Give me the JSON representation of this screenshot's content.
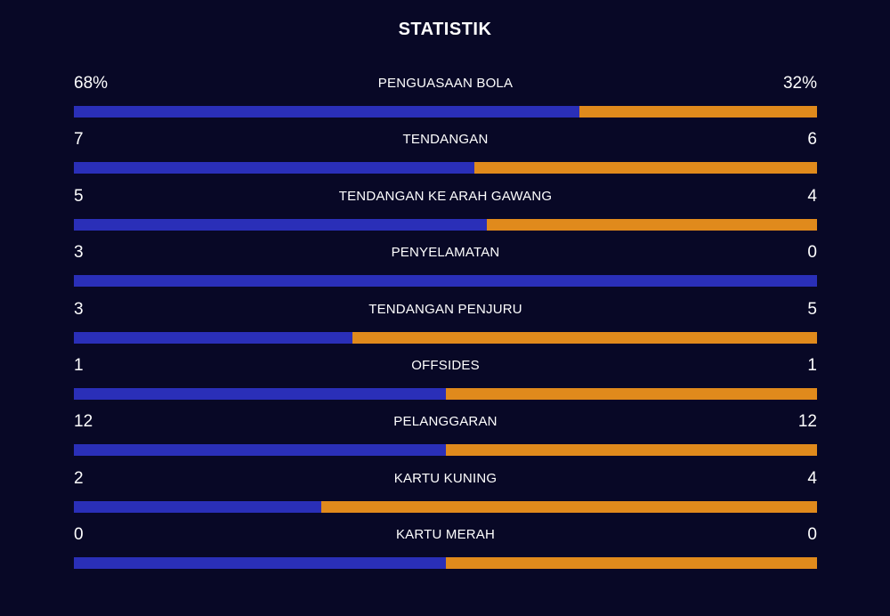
{
  "title": "STATISTIK",
  "colors": {
    "background": "#080826",
    "home": "#2a2fb8",
    "away": "#e08a1c",
    "text": "#ffffff"
  },
  "chart_data": {
    "type": "bar",
    "title": "STATISTIK",
    "categories": [
      "PENGUASAAN BOLA",
      "TENDANGAN",
      "TENDANGAN KE ARAH GAWANG",
      "PENYELAMATAN",
      "TENDANGAN PENJURU",
      "OFFSIDES",
      "PELANGGARAN",
      "KARTU KUNING",
      "KARTU MERAH"
    ],
    "series": [
      {
        "values": [
          68,
          7,
          5,
          3,
          3,
          1,
          12,
          2,
          0
        ]
      },
      {
        "values": [
          32,
          6,
          4,
          0,
          5,
          1,
          12,
          4,
          0
        ]
      }
    ],
    "display": [
      {
        "left": "68%",
        "right": "32%"
      },
      {
        "left": "7",
        "right": "6"
      },
      {
        "left": "5",
        "right": "4"
      },
      {
        "left": "3",
        "right": "0"
      },
      {
        "left": "3",
        "right": "5"
      },
      {
        "left": "1",
        "right": "1"
      },
      {
        "left": "12",
        "right": "12"
      },
      {
        "left": "2",
        "right": "4"
      },
      {
        "left": "0",
        "right": "0"
      }
    ]
  }
}
